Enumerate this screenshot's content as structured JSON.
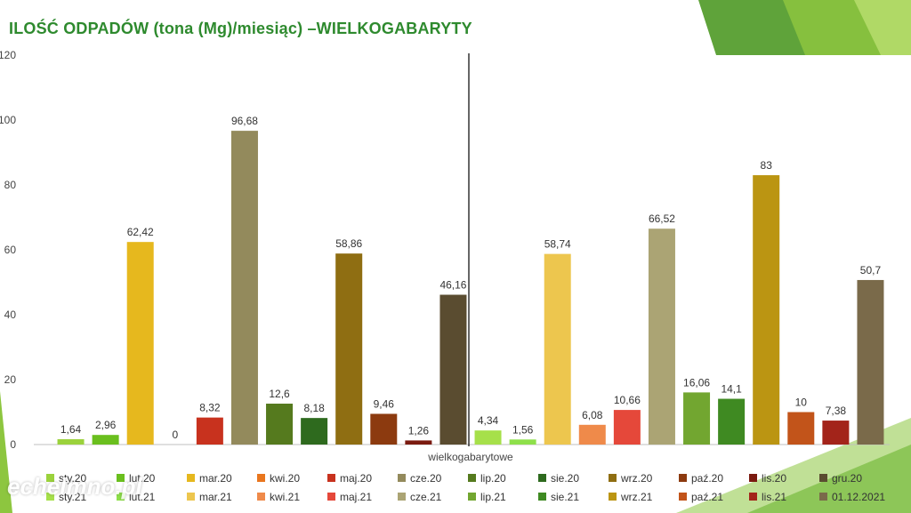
{
  "page_title": "ILOŚĆ ODPADÓW (tona (Mg)/miesiąc) –WIELKOGABARYTY",
  "watermark": "echelmno.pl",
  "colors": {
    "title": "#2e8a2e",
    "accent_green": "#8dc63f",
    "axis": "#bfbfbf",
    "divider": "#000000"
  },
  "chart_data": {
    "type": "bar",
    "title": "",
    "xlabel": "wielkogabarytowe",
    "ylabel": "",
    "ylim": [
      0,
      120
    ],
    "yticks": [
      0,
      20,
      40,
      60,
      80,
      100,
      120
    ],
    "ytick_labels": [
      "0",
      "20",
      "40",
      "60",
      "80",
      "100",
      "120"
    ],
    "categories": [
      "wielkogabarytowe"
    ],
    "series": [
      {
        "name": "sty.20",
        "value": 1.64,
        "label": "1,64",
        "color": "#9bd23c"
      },
      {
        "name": "lut.20",
        "value": 2.96,
        "label": "2,96",
        "color": "#6abf1e"
      },
      {
        "name": "mar.20",
        "value": 62.42,
        "label": "62,42",
        "color": "#e6b81e"
      },
      {
        "name": "kwi.20",
        "value": 0,
        "label": "0",
        "color": "#e9761e"
      },
      {
        "name": "maj.20",
        "value": 8.32,
        "label": "8,32",
        "color": "#c8321e"
      },
      {
        "name": "cze.20",
        "value": 96.68,
        "label": "96,68",
        "color": "#938a5c"
      },
      {
        "name": "lip.20",
        "value": 12.6,
        "label": "12,6",
        "color": "#557a1e"
      },
      {
        "name": "sie.20",
        "value": 8.18,
        "label": "8,18",
        "color": "#2e6a1e"
      },
      {
        "name": "wrz.20",
        "value": 58.86,
        "label": "58,86",
        "color": "#8f6e12"
      },
      {
        "name": "paź.20",
        "value": 9.46,
        "label": "9,46",
        "color": "#8c3a0f"
      },
      {
        "name": "lis.20",
        "value": 1.26,
        "label": "1,26",
        "color": "#7a1a10"
      },
      {
        "name": "gru.20",
        "value": 46.16,
        "label": "46,16",
        "color": "#5a4c30"
      },
      {
        "name": "sty.21",
        "value": 4.34,
        "label": "4,34",
        "color": "#a6e04a"
      },
      {
        "name": "lut.21",
        "value": 1.56,
        "label": "1,56",
        "color": "#8ee04a"
      },
      {
        "name": "mar.21",
        "value": 58.74,
        "label": "58,74",
        "color": "#edc64e"
      },
      {
        "name": "kwi.21",
        "value": 6.08,
        "label": "6,08",
        "color": "#ef8a4a"
      },
      {
        "name": "maj.21",
        "value": 10.66,
        "label": "10,66",
        "color": "#e5483a"
      },
      {
        "name": "cze.21",
        "value": 66.52,
        "label": "66,52",
        "color": "#aba474"
      },
      {
        "name": "lip.21",
        "value": 16.06,
        "label": "16,06",
        "color": "#72a630"
      },
      {
        "name": "sie.21",
        "value": 14.1,
        "label": "14,1",
        "color": "#3f8a22"
      },
      {
        "name": "wrz.21",
        "value": 83,
        "label": "83",
        "color": "#bb9512"
      },
      {
        "name": "paź.21",
        "value": 10,
        "label": "10",
        "color": "#c2541a"
      },
      {
        "name": "lis.21",
        "value": 7.38,
        "label": "7,38",
        "color": "#a3241a"
      },
      {
        "name": "01.12.2021",
        "value": 50.7,
        "label": "50,7",
        "color": "#7a6a4a"
      }
    ],
    "legend_placement": "bottom",
    "grid": false
  }
}
